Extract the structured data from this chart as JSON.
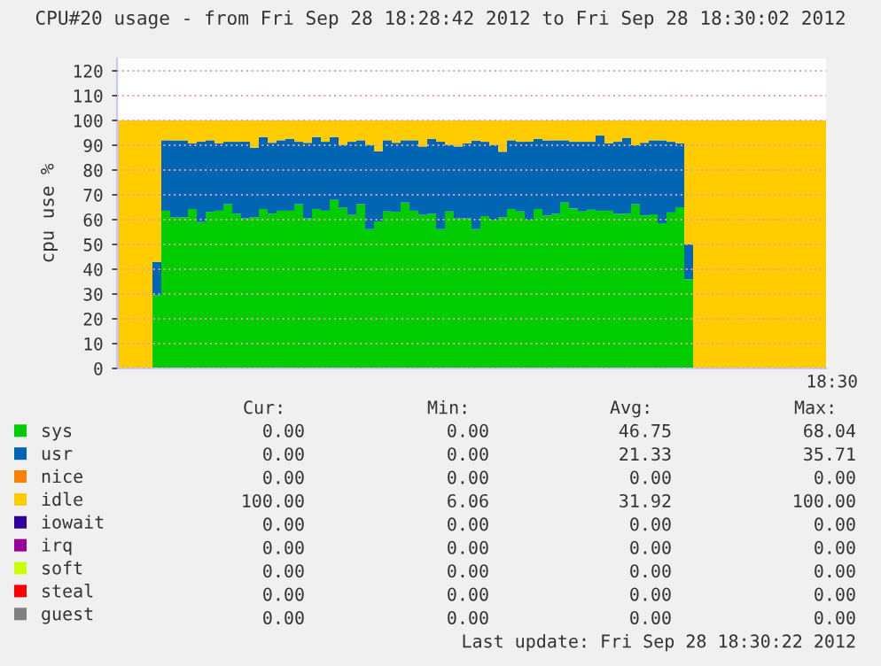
{
  "chart_data": {
    "type": "bar",
    "stacked": true,
    "title": "CPU#20 usage - from Fri Sep 28 18:28:42 2012 to Fri Sep 28 18:30:02 2012",
    "ylabel": "cpu use %",
    "categories": [
      null,
      null,
      null,
      null,
      null,
      null,
      null,
      null,
      null,
      null,
      null,
      null,
      null,
      null,
      null,
      null,
      null,
      null,
      null,
      null,
      null,
      null,
      null,
      null,
      null,
      null,
      null,
      null,
      null,
      null,
      null,
      null,
      null,
      null,
      null,
      null,
      null,
      null,
      null,
      null,
      null,
      null,
      null,
      null,
      null,
      null,
      null,
      null,
      null,
      null,
      null,
      null,
      null,
      null,
      null,
      null,
      null,
      null,
      null,
      null,
      null,
      null,
      null,
      null,
      null,
      null,
      null,
      null,
      null,
      null,
      null,
      null,
      null,
      null,
      null,
      null,
      null,
      null,
      null,
      null
    ],
    "series": [
      {
        "name": "sys",
        "color": "#00cc00",
        "values": [
          0,
          0,
          0,
          0,
          29.5,
          63.6,
          61.0,
          61.0,
          64.3,
          59.0,
          63.1,
          63.6,
          66.2,
          62.4,
          60.5,
          61.0,
          64.3,
          62.4,
          63.6,
          63.6,
          66.2,
          60.5,
          64.3,
          63.6,
          68.0,
          64.8,
          61.9,
          66.2,
          56.2,
          59.3,
          63.3,
          63.1,
          66.9,
          63.6,
          61.9,
          62.4,
          56.2,
          63.3,
          60.5,
          60.5,
          56.2,
          61.4,
          60.0,
          61.0,
          64.3,
          63.3,
          60.0,
          64.3,
          61.7,
          62.4,
          66.9,
          64.5,
          63.3,
          64.0,
          63.6,
          63.6,
          62.4,
          62.4,
          66.2,
          61.7,
          62.1,
          58.6,
          62.9,
          65.0,
          36,
          0,
          0,
          0,
          0,
          0,
          0,
          0,
          0,
          0,
          0,
          0,
          0,
          0,
          0,
          0
        ]
      },
      {
        "name": "usr",
        "color": "#0066b3",
        "values": [
          0,
          0,
          0,
          0,
          13.5,
          28.4,
          31.0,
          31.0,
          26.5,
          32.4,
          28.9,
          27.2,
          25.2,
          29.0,
          30.9,
          28.0,
          29.0,
          28.6,
          28.4,
          29.0,
          25.2,
          30.5,
          29.0,
          27.8,
          25.3,
          25.4,
          29.5,
          25.8,
          34.0,
          28.3,
          28.7,
          27.9,
          25.1,
          28.4,
          27.6,
          30.2,
          35.2,
          26.9,
          29.0,
          30.3,
          35.7,
          30.0,
          30.2,
          26.4,
          27.7,
          28.1,
          31.4,
          28.3,
          30.3,
          29.6,
          25.1,
          26.9,
          28.1,
          27.4,
          30.3,
          27.2,
          29.0,
          30.6,
          23.8,
          29.3,
          29.9,
          33.4,
          28.5,
          25.8,
          14,
          0,
          0,
          0,
          0,
          0,
          0,
          0,
          0,
          0,
          0,
          0,
          0,
          0,
          0,
          0
        ]
      },
      {
        "name": "nice",
        "color": "#ff8000",
        "values": [
          0,
          0,
          0,
          0,
          0,
          0,
          0,
          0,
          0,
          0,
          0,
          0,
          0,
          0,
          0,
          0,
          0,
          0,
          0,
          0,
          0,
          0,
          0,
          0,
          0,
          0,
          0,
          0,
          0,
          0,
          0,
          0,
          0,
          0,
          0,
          0,
          0,
          0,
          0,
          0,
          0,
          0,
          0,
          0,
          0,
          0,
          0,
          0,
          0,
          0,
          0,
          0,
          0,
          0,
          0,
          0,
          0,
          0,
          0,
          0,
          0,
          0,
          0,
          0,
          0,
          0,
          0,
          0,
          0,
          0,
          0,
          0,
          0,
          0,
          0,
          0,
          0,
          0,
          0,
          0
        ]
      },
      {
        "name": "idle",
        "color": "#ffcc00",
        "values": [
          100,
          100,
          100,
          100,
          57,
          8.0,
          8.0,
          8.0,
          9.2,
          8.6,
          8.0,
          9.2,
          8.6,
          8.6,
          8.6,
          11.0,
          6.7,
          9.0,
          8.0,
          7.4,
          8.6,
          9.0,
          6.7,
          8.6,
          6.7,
          9.8,
          8.6,
          8.0,
          9.8,
          12.4,
          8.0,
          9.0,
          8.0,
          8.0,
          10.5,
          7.4,
          8.6,
          9.8,
          10.5,
          9.2,
          8.1,
          8.6,
          9.8,
          12.6,
          8.0,
          8.6,
          8.6,
          7.4,
          8.0,
          8.0,
          8.0,
          8.6,
          8.6,
          8.6,
          6.1,
          9.2,
          8.6,
          7.0,
          10.0,
          9.0,
          8.0,
          8.0,
          8.6,
          9.2,
          50,
          100,
          100,
          100,
          100,
          100,
          100,
          100,
          100,
          100,
          100,
          100,
          100,
          100,
          100,
          100
        ]
      },
      {
        "name": "iowait",
        "color": "#330099",
        "values": [
          0,
          0,
          0,
          0,
          0,
          0,
          0,
          0,
          0,
          0,
          0,
          0,
          0,
          0,
          0,
          0,
          0,
          0,
          0,
          0,
          0,
          0,
          0,
          0,
          0,
          0,
          0,
          0,
          0,
          0,
          0,
          0,
          0,
          0,
          0,
          0,
          0,
          0,
          0,
          0,
          0,
          0,
          0,
          0,
          0,
          0,
          0,
          0,
          0,
          0,
          0,
          0,
          0,
          0,
          0,
          0,
          0,
          0,
          0,
          0,
          0,
          0,
          0,
          0,
          0,
          0,
          0,
          0,
          0,
          0,
          0,
          0,
          0,
          0,
          0,
          0,
          0,
          0,
          0,
          0
        ]
      },
      {
        "name": "irq",
        "color": "#990099",
        "values": [
          0,
          0,
          0,
          0,
          0,
          0,
          0,
          0,
          0,
          0,
          0,
          0,
          0,
          0,
          0,
          0,
          0,
          0,
          0,
          0,
          0,
          0,
          0,
          0,
          0,
          0,
          0,
          0,
          0,
          0,
          0,
          0,
          0,
          0,
          0,
          0,
          0,
          0,
          0,
          0,
          0,
          0,
          0,
          0,
          0,
          0,
          0,
          0,
          0,
          0,
          0,
          0,
          0,
          0,
          0,
          0,
          0,
          0,
          0,
          0,
          0,
          0,
          0,
          0,
          0,
          0,
          0,
          0,
          0,
          0,
          0,
          0,
          0,
          0,
          0,
          0,
          0,
          0,
          0,
          0
        ]
      },
      {
        "name": "soft",
        "color": "#ccff00",
        "values": [
          0,
          0,
          0,
          0,
          0,
          0,
          0,
          0,
          0,
          0,
          0,
          0,
          0,
          0,
          0,
          0,
          0,
          0,
          0,
          0,
          0,
          0,
          0,
          0,
          0,
          0,
          0,
          0,
          0,
          0,
          0,
          0,
          0,
          0,
          0,
          0,
          0,
          0,
          0,
          0,
          0,
          0,
          0,
          0,
          0,
          0,
          0,
          0,
          0,
          0,
          0,
          0,
          0,
          0,
          0,
          0,
          0,
          0,
          0,
          0,
          0,
          0,
          0,
          0,
          0,
          0,
          0,
          0,
          0,
          0,
          0,
          0,
          0,
          0,
          0,
          0,
          0,
          0,
          0,
          0
        ]
      },
      {
        "name": "steal",
        "color": "#ff0000",
        "values": [
          0,
          0,
          0,
          0,
          0,
          0,
          0,
          0,
          0,
          0,
          0,
          0,
          0,
          0,
          0,
          0,
          0,
          0,
          0,
          0,
          0,
          0,
          0,
          0,
          0,
          0,
          0,
          0,
          0,
          0,
          0,
          0,
          0,
          0,
          0,
          0,
          0,
          0,
          0,
          0,
          0,
          0,
          0,
          0,
          0,
          0,
          0,
          0,
          0,
          0,
          0,
          0,
          0,
          0,
          0,
          0,
          0,
          0,
          0,
          0,
          0,
          0,
          0,
          0,
          0,
          0,
          0,
          0,
          0,
          0,
          0,
          0,
          0,
          0,
          0,
          0,
          0,
          0,
          0,
          0
        ]
      },
      {
        "name": "guest",
        "color": "#808080",
        "values": [
          0,
          0,
          0,
          0,
          0,
          0,
          0,
          0,
          0,
          0,
          0,
          0,
          0,
          0,
          0,
          0,
          0,
          0,
          0,
          0,
          0,
          0,
          0,
          0,
          0,
          0,
          0,
          0,
          0,
          0,
          0,
          0,
          0,
          0,
          0,
          0,
          0,
          0,
          0,
          0,
          0,
          0,
          0,
          0,
          0,
          0,
          0,
          0,
          0,
          0,
          0,
          0,
          0,
          0,
          0,
          0,
          0,
          0,
          0,
          0,
          0,
          0,
          0,
          0,
          0,
          0,
          0,
          0,
          0,
          0,
          0,
          0,
          0,
          0,
          0,
          0,
          0,
          0,
          0,
          0
        ]
      }
    ],
    "ylim": [
      0,
      125
    ],
    "yticks": [
      0,
      10,
      20,
      30,
      40,
      50,
      60,
      70,
      80,
      90,
      100,
      110,
      120
    ],
    "grid": "y",
    "legend": "bottom",
    "annotations": [
      "18:30",
      "Cur:",
      "Min:",
      "Avg:",
      "Max:",
      "0.00",
      "0.00",
      "46.75",
      "68.04",
      "0.00",
      "0.00",
      "21.33",
      "35.71",
      "0.00",
      "0.00",
      "0.00",
      "0.00",
      "100.00",
      "6.06",
      "31.92",
      "100.00",
      "0.00",
      "0.00",
      "0.00",
      "0.00",
      "0.00",
      "0.00",
      "0.00",
      "0.00",
      "0.00",
      "0.00",
      "0.00",
      "0.00",
      "0.00",
      "0.00",
      "0.00",
      "0.00",
      "0.00",
      "0.00",
      "0.00",
      "0.00",
      "Last update: Fri Sep 28 18:30:22 2012"
    ]
  }
}
